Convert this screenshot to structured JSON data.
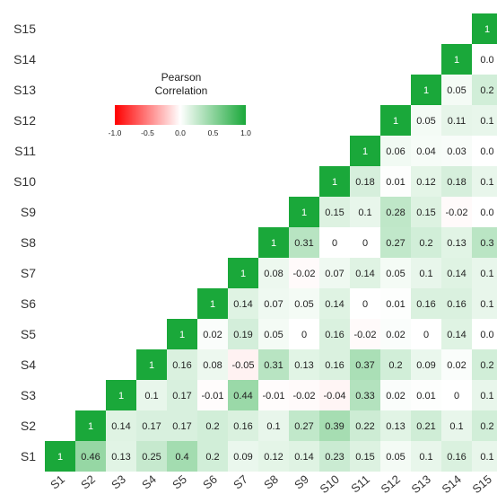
{
  "chart_data": {
    "type": "heatmap",
    "rows": [
      "S15",
      "S14",
      "S13",
      "S12",
      "S11",
      "S10",
      "S9",
      "S8",
      "S7",
      "S6",
      "S5",
      "S4",
      "S3",
      "S2",
      "S1"
    ],
    "columns": [
      "S1",
      "S2",
      "S3",
      "S4",
      "S5",
      "S6",
      "S7",
      "S8",
      "S9",
      "S10",
      "S11",
      "S12",
      "S13",
      "S14",
      "S15"
    ],
    "cells": [
      {
        "row": "S1",
        "col": "S1",
        "value": 1,
        "label": "1"
      },
      {
        "row": "S1",
        "col": "S2",
        "value": 0.46,
        "label": "0.46"
      },
      {
        "row": "S1",
        "col": "S3",
        "value": 0.13,
        "label": "0.13"
      },
      {
        "row": "S1",
        "col": "S4",
        "value": 0.25,
        "label": "0.25"
      },
      {
        "row": "S1",
        "col": "S5",
        "value": 0.4,
        "label": "0.4"
      },
      {
        "row": "S1",
        "col": "S6",
        "value": 0.2,
        "label": "0.2"
      },
      {
        "row": "S1",
        "col": "S7",
        "value": 0.09,
        "label": "0.09"
      },
      {
        "row": "S1",
        "col": "S8",
        "value": 0.12,
        "label": "0.12"
      },
      {
        "row": "S1",
        "col": "S9",
        "value": 0.14,
        "label": "0.14"
      },
      {
        "row": "S1",
        "col": "S10",
        "value": 0.23,
        "label": "0.23"
      },
      {
        "row": "S1",
        "col": "S11",
        "value": 0.15,
        "label": "0.15"
      },
      {
        "row": "S1",
        "col": "S12",
        "value": 0.05,
        "label": "0.05"
      },
      {
        "row": "S1",
        "col": "S13",
        "value": 0.1,
        "label": "0.1"
      },
      {
        "row": "S1",
        "col": "S14",
        "value": 0.16,
        "label": "0.16"
      },
      {
        "row": "S1",
        "col": "S15",
        "value": 0.1,
        "label": "0.1"
      },
      {
        "row": "S2",
        "col": "S2",
        "value": 1,
        "label": "1"
      },
      {
        "row": "S2",
        "col": "S3",
        "value": 0.14,
        "label": "0.14"
      },
      {
        "row": "S2",
        "col": "S4",
        "value": 0.17,
        "label": "0.17"
      },
      {
        "row": "S2",
        "col": "S5",
        "value": 0.17,
        "label": "0.17"
      },
      {
        "row": "S2",
        "col": "S6",
        "value": 0.2,
        "label": "0.2"
      },
      {
        "row": "S2",
        "col": "S7",
        "value": 0.16,
        "label": "0.16"
      },
      {
        "row": "S2",
        "col": "S8",
        "value": 0.1,
        "label": "0.1"
      },
      {
        "row": "S2",
        "col": "S9",
        "value": 0.27,
        "label": "0.27"
      },
      {
        "row": "S2",
        "col": "S10",
        "value": 0.39,
        "label": "0.39"
      },
      {
        "row": "S2",
        "col": "S11",
        "value": 0.22,
        "label": "0.22"
      },
      {
        "row": "S2",
        "col": "S12",
        "value": 0.13,
        "label": "0.13"
      },
      {
        "row": "S2",
        "col": "S13",
        "value": 0.21,
        "label": "0.21"
      },
      {
        "row": "S2",
        "col": "S14",
        "value": 0.1,
        "label": "0.1"
      },
      {
        "row": "S2",
        "col": "S15",
        "value": 0.2,
        "label": "0.2"
      },
      {
        "row": "S3",
        "col": "S3",
        "value": 1,
        "label": "1"
      },
      {
        "row": "S3",
        "col": "S4",
        "value": 0.1,
        "label": "0.1"
      },
      {
        "row": "S3",
        "col": "S5",
        "value": 0.17,
        "label": "0.17"
      },
      {
        "row": "S3",
        "col": "S6",
        "value": -0.01,
        "label": "-0.01"
      },
      {
        "row": "S3",
        "col": "S7",
        "value": 0.44,
        "label": "0.44"
      },
      {
        "row": "S3",
        "col": "S8",
        "value": -0.01,
        "label": "-0.01"
      },
      {
        "row": "S3",
        "col": "S9",
        "value": -0.02,
        "label": "-0.02"
      },
      {
        "row": "S3",
        "col": "S10",
        "value": -0.04,
        "label": "-0.04"
      },
      {
        "row": "S3",
        "col": "S11",
        "value": 0.33,
        "label": "0.33"
      },
      {
        "row": "S3",
        "col": "S12",
        "value": 0.02,
        "label": "0.02"
      },
      {
        "row": "S3",
        "col": "S13",
        "value": 0.01,
        "label": "0.01"
      },
      {
        "row": "S3",
        "col": "S14",
        "value": 0,
        "label": "0"
      },
      {
        "row": "S3",
        "col": "S15",
        "value": 0.1,
        "label": "0.1"
      },
      {
        "row": "S4",
        "col": "S4",
        "value": 1,
        "label": "1"
      },
      {
        "row": "S4",
        "col": "S5",
        "value": 0.16,
        "label": "0.16"
      },
      {
        "row": "S4",
        "col": "S6",
        "value": 0.08,
        "label": "0.08"
      },
      {
        "row": "S4",
        "col": "S7",
        "value": -0.05,
        "label": "-0.05"
      },
      {
        "row": "S4",
        "col": "S8",
        "value": 0.31,
        "label": "0.31"
      },
      {
        "row": "S4",
        "col": "S9",
        "value": 0.13,
        "label": "0.13"
      },
      {
        "row": "S4",
        "col": "S10",
        "value": 0.16,
        "label": "0.16"
      },
      {
        "row": "S4",
        "col": "S11",
        "value": 0.37,
        "label": "0.37"
      },
      {
        "row": "S4",
        "col": "S12",
        "value": 0.2,
        "label": "0.2"
      },
      {
        "row": "S4",
        "col": "S13",
        "value": 0.09,
        "label": "0.09"
      },
      {
        "row": "S4",
        "col": "S14",
        "value": 0.02,
        "label": "0.02"
      },
      {
        "row": "S4",
        "col": "S15",
        "value": 0.2,
        "label": "0.2"
      },
      {
        "row": "S5",
        "col": "S5",
        "value": 1,
        "label": "1"
      },
      {
        "row": "S5",
        "col": "S6",
        "value": 0.02,
        "label": "0.02"
      },
      {
        "row": "S5",
        "col": "S7",
        "value": 0.19,
        "label": "0.19"
      },
      {
        "row": "S5",
        "col": "S8",
        "value": 0.05,
        "label": "0.05"
      },
      {
        "row": "S5",
        "col": "S9",
        "value": 0,
        "label": "0"
      },
      {
        "row": "S5",
        "col": "S10",
        "value": 0.16,
        "label": "0.16"
      },
      {
        "row": "S5",
        "col": "S11",
        "value": -0.02,
        "label": "-0.02"
      },
      {
        "row": "S5",
        "col": "S12",
        "value": 0.02,
        "label": "0.02"
      },
      {
        "row": "S5",
        "col": "S13",
        "value": 0,
        "label": "0"
      },
      {
        "row": "S5",
        "col": "S14",
        "value": 0.14,
        "label": "0.14"
      },
      {
        "row": "S5",
        "col": "S15",
        "value": 0.0,
        "label": "0.0"
      },
      {
        "row": "S6",
        "col": "S6",
        "value": 1,
        "label": "1"
      },
      {
        "row": "S6",
        "col": "S7",
        "value": 0.14,
        "label": "0.14"
      },
      {
        "row": "S6",
        "col": "S8",
        "value": 0.07,
        "label": "0.07"
      },
      {
        "row": "S6",
        "col": "S9",
        "value": 0.05,
        "label": "0.05"
      },
      {
        "row": "S6",
        "col": "S10",
        "value": 0.14,
        "label": "0.14"
      },
      {
        "row": "S6",
        "col": "S11",
        "value": 0,
        "label": "0"
      },
      {
        "row": "S6",
        "col": "S12",
        "value": 0.01,
        "label": "0.01"
      },
      {
        "row": "S6",
        "col": "S13",
        "value": 0.16,
        "label": "0.16"
      },
      {
        "row": "S6",
        "col": "S14",
        "value": 0.16,
        "label": "0.16"
      },
      {
        "row": "S6",
        "col": "S15",
        "value": 0.1,
        "label": "0.1"
      },
      {
        "row": "S7",
        "col": "S7",
        "value": 1,
        "label": "1"
      },
      {
        "row": "S7",
        "col": "S8",
        "value": 0.08,
        "label": "0.08"
      },
      {
        "row": "S7",
        "col": "S9",
        "value": -0.02,
        "label": "-0.02"
      },
      {
        "row": "S7",
        "col": "S10",
        "value": 0.07,
        "label": "0.07"
      },
      {
        "row": "S7",
        "col": "S11",
        "value": 0.14,
        "label": "0.14"
      },
      {
        "row": "S7",
        "col": "S12",
        "value": 0.05,
        "label": "0.05"
      },
      {
        "row": "S7",
        "col": "S13",
        "value": 0.1,
        "label": "0.1"
      },
      {
        "row": "S7",
        "col": "S14",
        "value": 0.14,
        "label": "0.14"
      },
      {
        "row": "S7",
        "col": "S15",
        "value": 0.1,
        "label": "0.1"
      },
      {
        "row": "S8",
        "col": "S8",
        "value": 1,
        "label": "1"
      },
      {
        "row": "S8",
        "col": "S9",
        "value": 0.31,
        "label": "0.31"
      },
      {
        "row": "S8",
        "col": "S10",
        "value": 0,
        "label": "0"
      },
      {
        "row": "S8",
        "col": "S11",
        "value": 0,
        "label": "0"
      },
      {
        "row": "S8",
        "col": "S12",
        "value": 0.27,
        "label": "0.27"
      },
      {
        "row": "S8",
        "col": "S13",
        "value": 0.2,
        "label": "0.2"
      },
      {
        "row": "S8",
        "col": "S14",
        "value": 0.13,
        "label": "0.13"
      },
      {
        "row": "S8",
        "col": "S15",
        "value": 0.3,
        "label": "0.3"
      },
      {
        "row": "S9",
        "col": "S9",
        "value": 1,
        "label": "1"
      },
      {
        "row": "S9",
        "col": "S10",
        "value": 0.15,
        "label": "0.15"
      },
      {
        "row": "S9",
        "col": "S11",
        "value": 0.1,
        "label": "0.1"
      },
      {
        "row": "S9",
        "col": "S12",
        "value": 0.28,
        "label": "0.28"
      },
      {
        "row": "S9",
        "col": "S13",
        "value": 0.15,
        "label": "0.15"
      },
      {
        "row": "S9",
        "col": "S14",
        "value": -0.02,
        "label": "-0.02"
      },
      {
        "row": "S9",
        "col": "S15",
        "value": 0.0,
        "label": "0.0"
      },
      {
        "row": "S10",
        "col": "S10",
        "value": 1,
        "label": "1"
      },
      {
        "row": "S10",
        "col": "S11",
        "value": 0.18,
        "label": "0.18"
      },
      {
        "row": "S10",
        "col": "S12",
        "value": 0.01,
        "label": "0.01"
      },
      {
        "row": "S10",
        "col": "S13",
        "value": 0.12,
        "label": "0.12"
      },
      {
        "row": "S10",
        "col": "S14",
        "value": 0.18,
        "label": "0.18"
      },
      {
        "row": "S10",
        "col": "S15",
        "value": 0.1,
        "label": "0.1"
      },
      {
        "row": "S11",
        "col": "S11",
        "value": 1,
        "label": "1"
      },
      {
        "row": "S11",
        "col": "S12",
        "value": 0.06,
        "label": "0.06"
      },
      {
        "row": "S11",
        "col": "S13",
        "value": 0.04,
        "label": "0.04"
      },
      {
        "row": "S11",
        "col": "S14",
        "value": 0.03,
        "label": "0.03"
      },
      {
        "row": "S11",
        "col": "S15",
        "value": 0.0,
        "label": "0.0"
      },
      {
        "row": "S12",
        "col": "S12",
        "value": 1,
        "label": "1"
      },
      {
        "row": "S12",
        "col": "S13",
        "value": 0.05,
        "label": "0.05"
      },
      {
        "row": "S12",
        "col": "S14",
        "value": 0.11,
        "label": "0.11"
      },
      {
        "row": "S12",
        "col": "S15",
        "value": 0.1,
        "label": "0.1"
      },
      {
        "row": "S13",
        "col": "S13",
        "value": 1,
        "label": "1"
      },
      {
        "row": "S13",
        "col": "S14",
        "value": 0.05,
        "label": "0.05"
      },
      {
        "row": "S13",
        "col": "S15",
        "value": 0.2,
        "label": "0.2"
      },
      {
        "row": "S14",
        "col": "S14",
        "value": 1,
        "label": "1"
      },
      {
        "row": "S14",
        "col": "S15",
        "value": 0.0,
        "label": "0.0"
      },
      {
        "row": "S15",
        "col": "S15",
        "value": 1,
        "label": "1"
      }
    ],
    "color_scale": {
      "min": -1,
      "mid": 0,
      "max": 1,
      "min_color": "#ff0000",
      "mid_color": "#ffffff",
      "max_color": "#1aa83a"
    },
    "legend": {
      "title_line1": "Pearson",
      "title_line2": "Correlation",
      "ticks": [
        "-1.0",
        "-0.5",
        "0.0",
        "0.5",
        "1.0"
      ],
      "tick_values": [
        -1,
        -0.5,
        0,
        0.5,
        1
      ],
      "placement": "top-left"
    }
  }
}
